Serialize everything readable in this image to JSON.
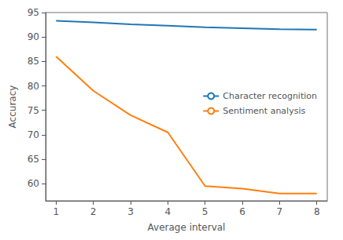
{
  "chart_data": {
    "type": "line",
    "x": [
      1,
      2,
      3,
      4,
      5,
      6,
      7,
      8
    ],
    "series": [
      {
        "name": "Character recognition",
        "color": "#1f77b4",
        "values": [
          93.3,
          93.0,
          92.6,
          92.3,
          92.0,
          91.8,
          91.6,
          91.5
        ]
      },
      {
        "name": "Sentiment analysis",
        "color": "#ff7f0e",
        "values": [
          86.0,
          79.0,
          74.0,
          70.5,
          59.5,
          59.0,
          58.0,
          58.0
        ]
      }
    ],
    "xlabel": "Average interval",
    "ylabel": "Accuracy",
    "xlim": [
      0.72,
      8.28
    ],
    "xticks": [
      1,
      2,
      3,
      4,
      5,
      6,
      7,
      8
    ],
    "ylim": [
      56.5,
      95.0
    ],
    "yticks": [
      60,
      65,
      70,
      75,
      80,
      85,
      90,
      95
    ],
    "grid": false,
    "legend": "right"
  }
}
